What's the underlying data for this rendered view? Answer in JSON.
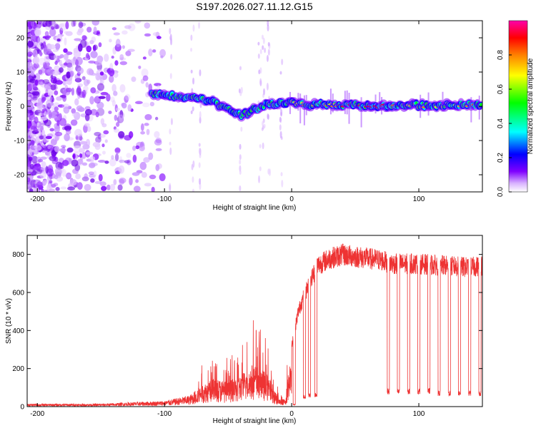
{
  "title": "S197.2026.027.11.12.G15",
  "chart_data": [
    {
      "type": "heatmap",
      "title": "S197.2026.027.11.12.G15",
      "xlabel": "Height of straight line (km)",
      "ylabel": "Frequency (Hz)",
      "xlim": [
        -208,
        150
      ],
      "ylim": [
        -25,
        25
      ],
      "xticks": [
        -200,
        -100,
        0,
        100
      ],
      "yticks": [
        -20,
        -10,
        0,
        10,
        20
      ],
      "ridge": {
        "description_x": [
          -110,
          -95,
          -80,
          -70,
          -60,
          -50,
          -40,
          -35,
          -30,
          -20,
          -10,
          0,
          10,
          30,
          60,
          100,
          150
        ],
        "frequency_hz": [
          3.5,
          3.0,
          2.5,
          2.0,
          1.0,
          -1.0,
          -2.5,
          -2.0,
          -1.0,
          0.5,
          1.0,
          1.0,
          0.5,
          0.5,
          0.2,
          0.3,
          0.5
        ]
      },
      "colorbar": {
        "label": "Normalized spectral amplitude",
        "range": [
          0.0,
          1.0
        ],
        "ticks": [
          "0.0",
          "0.2",
          "0.4",
          "0.6",
          "0.8"
        ],
        "tick_values": [
          0.0,
          0.2,
          0.4,
          0.6,
          0.8
        ],
        "colors": [
          "#ffffff",
          "#d9b3ff",
          "#7f00ff",
          "#0000ff",
          "#00ffff",
          "#00ff00",
          "#ffff00",
          "#ff8000",
          "#ff0000",
          "#ff00aa"
        ]
      }
    },
    {
      "type": "line",
      "xlabel": "Height of straight line (km)",
      "ylabel": "SNR (10 * v/v)",
      "xlim": [
        -208,
        150
      ],
      "ylim": [
        0,
        900
      ],
      "xticks": [
        -200,
        -100,
        0,
        100
      ],
      "yticks": [
        0,
        200,
        400,
        600,
        800
      ],
      "color": "#ee3333",
      "envelope_x": [
        -208,
        -150,
        -120,
        -100,
        -80,
        -70,
        -60,
        -50,
        -40,
        -30,
        -20,
        -15,
        -10,
        -5,
        0,
        5,
        10,
        15,
        20,
        30,
        40,
        50,
        60,
        70,
        80,
        100,
        120,
        140,
        150
      ],
      "envelope_snr": [
        15,
        15,
        25,
        30,
        60,
        120,
        150,
        130,
        170,
        230,
        180,
        120,
        40,
        40,
        330,
        520,
        620,
        700,
        780,
        820,
        840,
        830,
        820,
        810,
        790,
        790,
        780,
        770,
        780
      ],
      "dropouts_x": [
        2,
        10,
        14,
        19,
        76,
        84,
        92,
        100,
        108,
        116,
        124,
        132,
        140,
        148
      ],
      "dropout_snr": [
        10,
        50,
        60,
        60,
        80,
        80,
        80,
        80,
        80,
        70,
        70,
        70,
        70,
        70
      ]
    }
  ]
}
